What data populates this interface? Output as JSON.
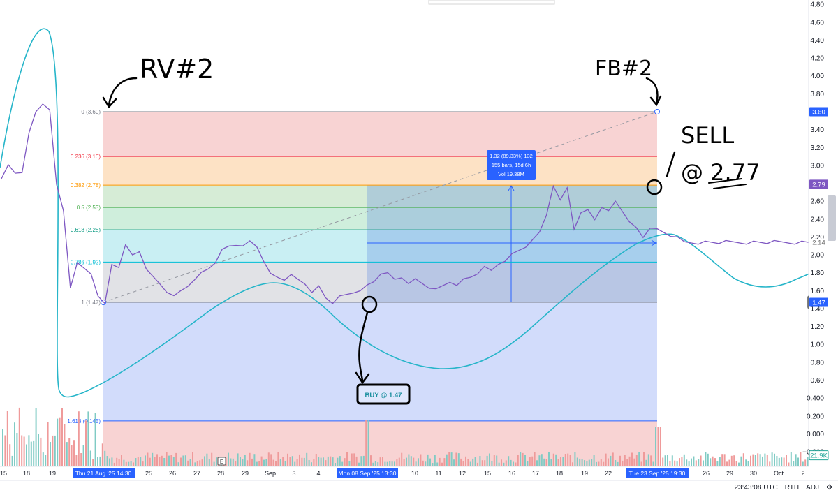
{
  "chart_data": {
    "type": "line",
    "title": "",
    "y_axis": {
      "position": "right",
      "ticks": [
        "4.80",
        "4.60",
        "4.40",
        "4.20",
        "4.00",
        "3.80",
        "3.60",
        "3.40",
        "3.20",
        "3.00",
        "2.80",
        "2.60",
        "2.40",
        "2.20",
        "2.00",
        "1.80",
        "1.60",
        "1.40",
        "1.20",
        "1.00",
        "0.80",
        "0.60",
        "0.400",
        "0.200",
        "0.000",
        "−0.200"
      ],
      "tick_values": [
        4.8,
        4.6,
        4.4,
        4.2,
        4.0,
        3.8,
        3.6,
        3.4,
        3.2,
        3.0,
        2.8,
        2.6,
        2.4,
        2.2,
        2.0,
        1.8,
        1.6,
        1.4,
        1.2,
        1.0,
        0.8,
        0.6,
        0.4,
        0.2,
        0.0,
        -0.2
      ],
      "ylim": [
        -0.25,
        4.9
      ],
      "price_badges": [
        {
          "label": "3.60",
          "value": 3.6,
          "style": "filled",
          "color": "#2962ff"
        },
        {
          "label": "2.79",
          "value": 2.79,
          "style": "filled",
          "color": "#7e57c2"
        },
        {
          "label": "2.14",
          "value": 2.14,
          "style": "plain",
          "color": "#6b6b6b"
        },
        {
          "label": "1.47",
          "value": 1.47,
          "style": "filled",
          "color": "#2962ff"
        },
        {
          "label": "21.9K",
          "value": -0.24,
          "style": "outline",
          "color": "#26a69a"
        }
      ]
    },
    "x_axis": {
      "ticks": [
        "15",
        "18",
        "19",
        "25",
        "26",
        "27",
        "28",
        "29",
        "Sep",
        "3",
        "4",
        "10",
        "11",
        "12",
        "15",
        "16",
        "17",
        "18",
        "19",
        "22",
        "26",
        "29",
        "30",
        "Oct",
        "2"
      ],
      "highlighted": [
        "Thu 21 Aug '25   14:30",
        "Mon 08 Sep '25   13:30",
        "Tue 23 Sep '25   19:30"
      ],
      "event_marker": "E"
    },
    "fib_levels": [
      {
        "label": "0 (3.60)",
        "ratio": 0,
        "value": 3.6,
        "color": "#787b86"
      },
      {
        "label": "0.236 (3.10)",
        "ratio": 0.236,
        "value": 3.1,
        "color": "#f23645"
      },
      {
        "label": "0.382 (2.78)",
        "ratio": 0.382,
        "value": 2.78,
        "color": "#ff9800"
      },
      {
        "label": "0.5 (2.53)",
        "ratio": 0.5,
        "value": 2.53,
        "color": "#4caf50"
      },
      {
        "label": "0.618 (2.28)",
        "ratio": 0.618,
        "value": 2.28,
        "color": "#089981"
      },
      {
        "label": "0.786 (1.92)",
        "ratio": 0.786,
        "value": 1.92,
        "color": "#00bcd4"
      },
      {
        "label": "1 (1.47)",
        "ratio": 1,
        "value": 1.47,
        "color": "#787b86"
      },
      {
        "label": "1.618 (0.145)",
        "ratio": 1.618,
        "value": 0.145,
        "color": "#2962ff"
      }
    ],
    "measure_tooltip": {
      "line1": "1.32 (89.33%) 132",
      "line2": "155 bars, 15d 6h",
      "line3": "Vol 19.38M"
    },
    "series": [
      {
        "name": "price",
        "color": "#7e57c2",
        "x": [
          0,
          1,
          2,
          3,
          4,
          5,
          6,
          7,
          8,
          9,
          10,
          11,
          12,
          13,
          14,
          15,
          16,
          17,
          18,
          19,
          20,
          21,
          22,
          23,
          24,
          25,
          26,
          27,
          28,
          29,
          30,
          31,
          32,
          33,
          34,
          35,
          36,
          37,
          38,
          39,
          40,
          41,
          42,
          43,
          44,
          45,
          46,
          47,
          48,
          49,
          50,
          51,
          52,
          53,
          54,
          55,
          56,
          57,
          58,
          59,
          60,
          61,
          62,
          63,
          64,
          65,
          66,
          67,
          68,
          69,
          70,
          71,
          72,
          73,
          74,
          75,
          76,
          77,
          78,
          79,
          80,
          81,
          82,
          83,
          84,
          85,
          86,
          87,
          88,
          89,
          90,
          91,
          92,
          93,
          94,
          95,
          96,
          97,
          98,
          99,
          100,
          101,
          102,
          103,
          104,
          105,
          106,
          107,
          108,
          109,
          110,
          111,
          112,
          113,
          114,
          115,
          116,
          117
        ],
        "values": [
          2.83,
          3.0,
          2.92,
          2.94,
          3.35,
          3.6,
          3.7,
          3.6,
          2.78,
          2.5,
          1.65,
          1.9,
          1.85,
          1.8,
          1.52,
          1.45,
          1.9,
          1.88,
          2.1,
          2.0,
          2.05,
          1.82,
          1.75,
          1.68,
          1.6,
          1.53,
          1.6,
          1.66,
          1.7,
          1.8,
          1.85,
          1.93,
          2.05,
          2.1,
          2.12,
          2.08,
          2.15,
          2.1,
          1.95,
          1.78,
          1.75,
          1.73,
          1.76,
          1.72,
          1.68,
          1.6,
          1.64,
          1.52,
          1.47,
          1.52,
          1.55,
          1.58,
          1.62,
          1.65,
          1.7,
          1.8,
          1.78,
          1.72,
          1.75,
          1.7,
          1.72,
          1.68,
          1.64,
          1.6,
          1.65,
          1.7,
          1.68,
          1.72,
          1.75,
          1.8,
          1.85,
          1.82,
          1.9,
          1.95,
          2.0,
          2.05,
          2.1,
          2.15,
          2.25,
          2.45,
          2.79,
          2.6,
          2.75,
          2.3,
          2.45,
          2.5,
          2.4,
          2.55,
          2.48,
          2.6,
          2.5,
          2.35,
          2.3,
          2.2,
          2.32,
          2.28,
          2.25,
          2.22,
          2.18,
          2.14,
          2.14,
          2.14,
          2.14,
          2.14,
          2.14,
          2.14,
          2.14,
          2.14,
          2.14,
          2.14,
          2.14,
          2.14,
          2.14,
          2.14,
          2.14,
          2.14,
          2.14,
          2.14
        ]
      }
    ],
    "annotations": {
      "rv": "RV#2",
      "fb": "FB#2",
      "sell": "SELL",
      "sell_price": "@ 2.77",
      "buy": "BUY @ 1.47"
    }
  },
  "status_bar": {
    "time": "23:43:08 UTC",
    "session": "RTH",
    "adj": "ADJ"
  },
  "colors": {
    "price_line": "#7e57c2",
    "oscillator": "#26b5c9",
    "fib_fill_top": "#f8d2d3",
    "axis_highlight": "#2962ff"
  }
}
